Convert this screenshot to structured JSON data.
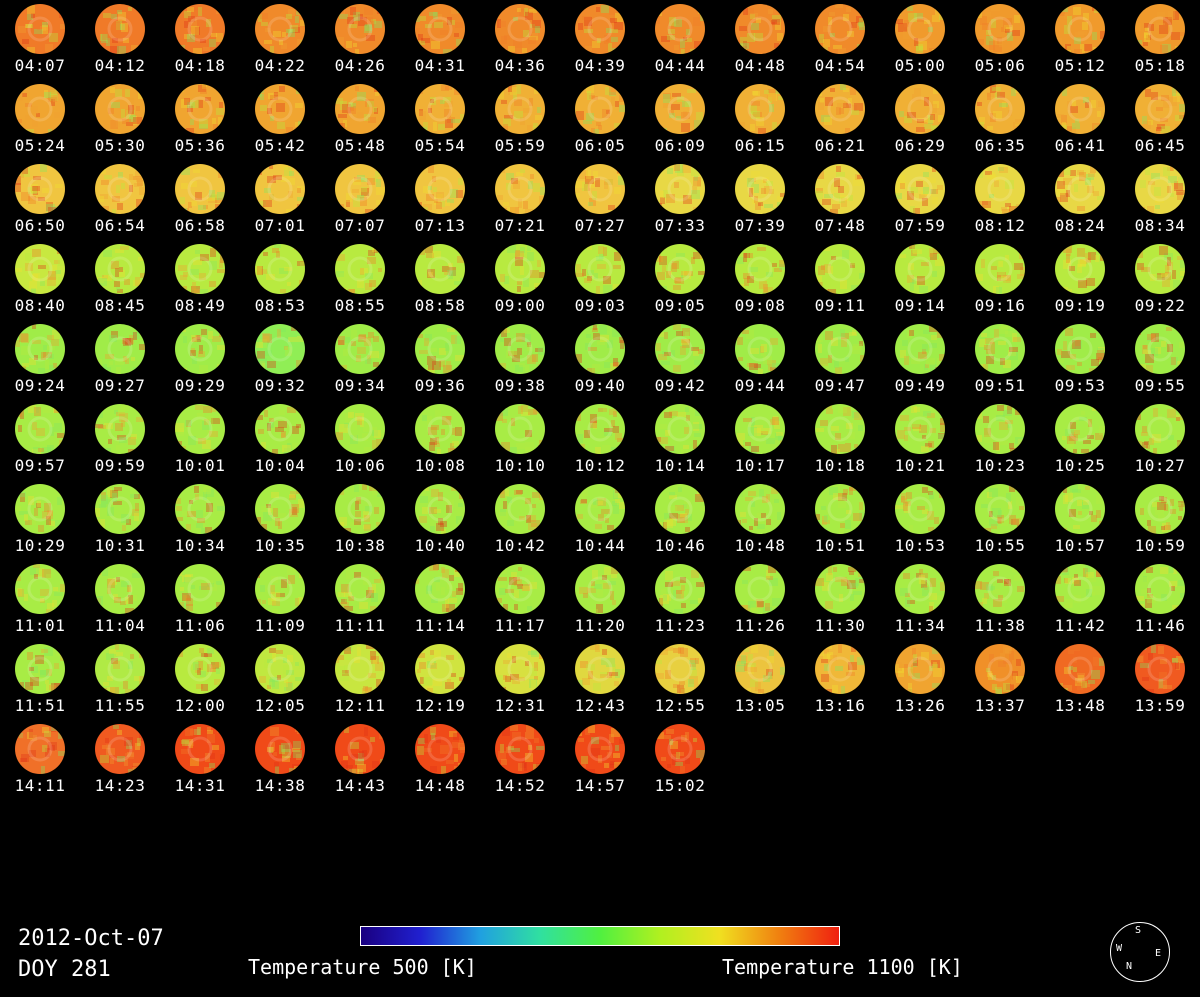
{
  "date": "2012-Oct-07",
  "doy": "DOY 281",
  "colorbar": {
    "min_label": "Temperature 500 [K]",
    "max_label": "Temperature 1100 [K]",
    "min_value": 500,
    "max_value": 1100,
    "unit": "K",
    "colors": [
      "#1a0080",
      "#2020d0",
      "#20a0e0",
      "#30e0a0",
      "#50f040",
      "#b0f020",
      "#f0e020",
      "#f08010",
      "#f02010"
    ]
  },
  "compass": {
    "top": "S",
    "left": "W",
    "right": "E",
    "bottom": "N"
  },
  "frames": [
    {
      "time": "04:07",
      "color": "#f07a28"
    },
    {
      "time": "04:12",
      "color": "#f07a28"
    },
    {
      "time": "04:18",
      "color": "#f07a28"
    },
    {
      "time": "04:22",
      "color": "#f08a2a"
    },
    {
      "time": "04:26",
      "color": "#f08a2a"
    },
    {
      "time": "04:31",
      "color": "#f08a2a"
    },
    {
      "time": "04:36",
      "color": "#f08a2a"
    },
    {
      "time": "04:39",
      "color": "#f08a2a"
    },
    {
      "time": "04:44",
      "color": "#f08a2a"
    },
    {
      "time": "04:48",
      "color": "#f08a2a"
    },
    {
      "time": "04:54",
      "color": "#f08a2a"
    },
    {
      "time": "05:00",
      "color": "#f09a2c"
    },
    {
      "time": "05:06",
      "color": "#f09a2c"
    },
    {
      "time": "05:12",
      "color": "#f09a2c"
    },
    {
      "time": "05:18",
      "color": "#f09a2c"
    },
    {
      "time": "05:24",
      "color": "#f0a530"
    },
    {
      "time": "05:30",
      "color": "#f0a530"
    },
    {
      "time": "05:36",
      "color": "#f0a530"
    },
    {
      "time": "05:42",
      "color": "#f0a530"
    },
    {
      "time": "05:48",
      "color": "#f0a530"
    },
    {
      "time": "05:54",
      "color": "#f0b035"
    },
    {
      "time": "05:59",
      "color": "#f0b035"
    },
    {
      "time": "06:05",
      "color": "#f0b035"
    },
    {
      "time": "06:09",
      "color": "#f0b035"
    },
    {
      "time": "06:15",
      "color": "#f0b035"
    },
    {
      "time": "06:21",
      "color": "#f0b035"
    },
    {
      "time": "06:29",
      "color": "#f0b035"
    },
    {
      "time": "06:35",
      "color": "#f0b035"
    },
    {
      "time": "06:41",
      "color": "#f0b035"
    },
    {
      "time": "06:45",
      "color": "#f0b035"
    },
    {
      "time": "06:50",
      "color": "#f0c540"
    },
    {
      "time": "06:54",
      "color": "#f0c540"
    },
    {
      "time": "06:58",
      "color": "#f0c540"
    },
    {
      "time": "07:01",
      "color": "#f0c540"
    },
    {
      "time": "07:07",
      "color": "#f0c540"
    },
    {
      "time": "07:13",
      "color": "#f0c540"
    },
    {
      "time": "07:21",
      "color": "#f0c540"
    },
    {
      "time": "07:27",
      "color": "#f0c540"
    },
    {
      "time": "07:33",
      "color": "#e8d845"
    },
    {
      "time": "07:39",
      "color": "#e8d845"
    },
    {
      "time": "07:48",
      "color": "#e8d845"
    },
    {
      "time": "07:59",
      "color": "#e8d845"
    },
    {
      "time": "08:12",
      "color": "#e8d845"
    },
    {
      "time": "08:24",
      "color": "#e8d845"
    },
    {
      "time": "08:34",
      "color": "#e8d845"
    },
    {
      "time": "08:40",
      "color": "#c8e840"
    },
    {
      "time": "08:45",
      "color": "#b8ea40"
    },
    {
      "time": "08:49",
      "color": "#b8ea40"
    },
    {
      "time": "08:53",
      "color": "#b8ea40"
    },
    {
      "time": "08:55",
      "color": "#b8ea40"
    },
    {
      "time": "08:58",
      "color": "#b8ea40"
    },
    {
      "time": "09:00",
      "color": "#b8ea40"
    },
    {
      "time": "09:03",
      "color": "#b8ea40"
    },
    {
      "time": "09:05",
      "color": "#b8ea40"
    },
    {
      "time": "09:08",
      "color": "#b8ea40"
    },
    {
      "time": "09:11",
      "color": "#b8ea40"
    },
    {
      "time": "09:14",
      "color": "#b8ea40"
    },
    {
      "time": "09:16",
      "color": "#b8ea40"
    },
    {
      "time": "09:19",
      "color": "#b8ea40"
    },
    {
      "time": "09:22",
      "color": "#b8ea40"
    },
    {
      "time": "09:24",
      "color": "#a0ec48"
    },
    {
      "time": "09:27",
      "color": "#a0ec48"
    },
    {
      "time": "09:29",
      "color": "#a0ec48"
    },
    {
      "time": "09:32",
      "color": "#90ee55"
    },
    {
      "time": "09:34",
      "color": "#a0ec48"
    },
    {
      "time": "09:36",
      "color": "#a0ec48"
    },
    {
      "time": "09:38",
      "color": "#a0ec48"
    },
    {
      "time": "09:40",
      "color": "#a0ec48"
    },
    {
      "time": "09:42",
      "color": "#a0ec48"
    },
    {
      "time": "09:44",
      "color": "#a0ec48"
    },
    {
      "time": "09:47",
      "color": "#a0ec48"
    },
    {
      "time": "09:49",
      "color": "#a0ec48"
    },
    {
      "time": "09:51",
      "color": "#a0ec48"
    },
    {
      "time": "09:53",
      "color": "#a0ec48"
    },
    {
      "time": "09:55",
      "color": "#a0ec48"
    },
    {
      "time": "09:57",
      "color": "#a8ec45"
    },
    {
      "time": "09:59",
      "color": "#a8ec45"
    },
    {
      "time": "10:01",
      "color": "#a8ec45"
    },
    {
      "time": "10:04",
      "color": "#a8ec45"
    },
    {
      "time": "10:06",
      "color": "#a8ec45"
    },
    {
      "time": "10:08",
      "color": "#a8ec45"
    },
    {
      "time": "10:10",
      "color": "#a8ec45"
    },
    {
      "time": "10:12",
      "color": "#a8ec45"
    },
    {
      "time": "10:14",
      "color": "#a8ec45"
    },
    {
      "time": "10:17",
      "color": "#a8ec45"
    },
    {
      "time": "10:18",
      "color": "#a8ec45"
    },
    {
      "time": "10:21",
      "color": "#a8ec45"
    },
    {
      "time": "10:23",
      "color": "#a8ec45"
    },
    {
      "time": "10:25",
      "color": "#a8ec45"
    },
    {
      "time": "10:27",
      "color": "#a8ec45"
    },
    {
      "time": "10:29",
      "color": "#a8ec45"
    },
    {
      "time": "10:31",
      "color": "#a8ec45"
    },
    {
      "time": "10:34",
      "color": "#a8ec45"
    },
    {
      "time": "10:35",
      "color": "#a8ec45"
    },
    {
      "time": "10:38",
      "color": "#a8ec45"
    },
    {
      "time": "10:40",
      "color": "#a8ec45"
    },
    {
      "time": "10:42",
      "color": "#a8ec45"
    },
    {
      "time": "10:44",
      "color": "#a8ec45"
    },
    {
      "time": "10:46",
      "color": "#a8ec45"
    },
    {
      "time": "10:48",
      "color": "#a8ec45"
    },
    {
      "time": "10:51",
      "color": "#a8ec45"
    },
    {
      "time": "10:53",
      "color": "#a8ec45"
    },
    {
      "time": "10:55",
      "color": "#a8ec45"
    },
    {
      "time": "10:57",
      "color": "#a8ec45"
    },
    {
      "time": "10:59",
      "color": "#a8ec45"
    },
    {
      "time": "11:01",
      "color": "#a8ec45"
    },
    {
      "time": "11:04",
      "color": "#a8ec45"
    },
    {
      "time": "11:06",
      "color": "#a8ec45"
    },
    {
      "time": "11:09",
      "color": "#a8ec45"
    },
    {
      "time": "11:11",
      "color": "#a8ec45"
    },
    {
      "time": "11:14",
      "color": "#a8ec45"
    },
    {
      "time": "11:17",
      "color": "#a8ec45"
    },
    {
      "time": "11:20",
      "color": "#a8ec45"
    },
    {
      "time": "11:23",
      "color": "#a8ec45"
    },
    {
      "time": "11:26",
      "color": "#a8ec45"
    },
    {
      "time": "11:30",
      "color": "#a8ec45"
    },
    {
      "time": "11:34",
      "color": "#a8ec45"
    },
    {
      "time": "11:38",
      "color": "#a8ec45"
    },
    {
      "time": "11:42",
      "color": "#a8ec45"
    },
    {
      "time": "11:46",
      "color": "#a8ec45"
    },
    {
      "time": "11:51",
      "color": "#a8ec45"
    },
    {
      "time": "11:55",
      "color": "#b0ea45"
    },
    {
      "time": "12:00",
      "color": "#b8ea40"
    },
    {
      "time": "12:05",
      "color": "#c0e840"
    },
    {
      "time": "12:11",
      "color": "#c8e640"
    },
    {
      "time": "12:19",
      "color": "#d0e440"
    },
    {
      "time": "12:31",
      "color": "#d8e040"
    },
    {
      "time": "12:43",
      "color": "#e0d840"
    },
    {
      "time": "12:55",
      "color": "#e8d040"
    },
    {
      "time": "13:05",
      "color": "#ecc43e"
    },
    {
      "time": "13:16",
      "color": "#f0b838"
    },
    {
      "time": "13:26",
      "color": "#f0a430"
    },
    {
      "time": "13:37",
      "color": "#f09028"
    },
    {
      "time": "13:48",
      "color": "#f06a22"
    },
    {
      "time": "13:59",
      "color": "#f05a20"
    },
    {
      "time": "14:11",
      "color": "#f07028"
    },
    {
      "time": "14:23",
      "color": "#f05a20"
    },
    {
      "time": "14:31",
      "color": "#f04a18"
    },
    {
      "time": "14:38",
      "color": "#f04a18"
    },
    {
      "time": "14:43",
      "color": "#f04a18"
    },
    {
      "time": "14:48",
      "color": "#f04a18"
    },
    {
      "time": "14:52",
      "color": "#f04a18"
    },
    {
      "time": "14:57",
      "color": "#f04a18"
    },
    {
      "time": "15:02",
      "color": "#f04a18"
    }
  ]
}
